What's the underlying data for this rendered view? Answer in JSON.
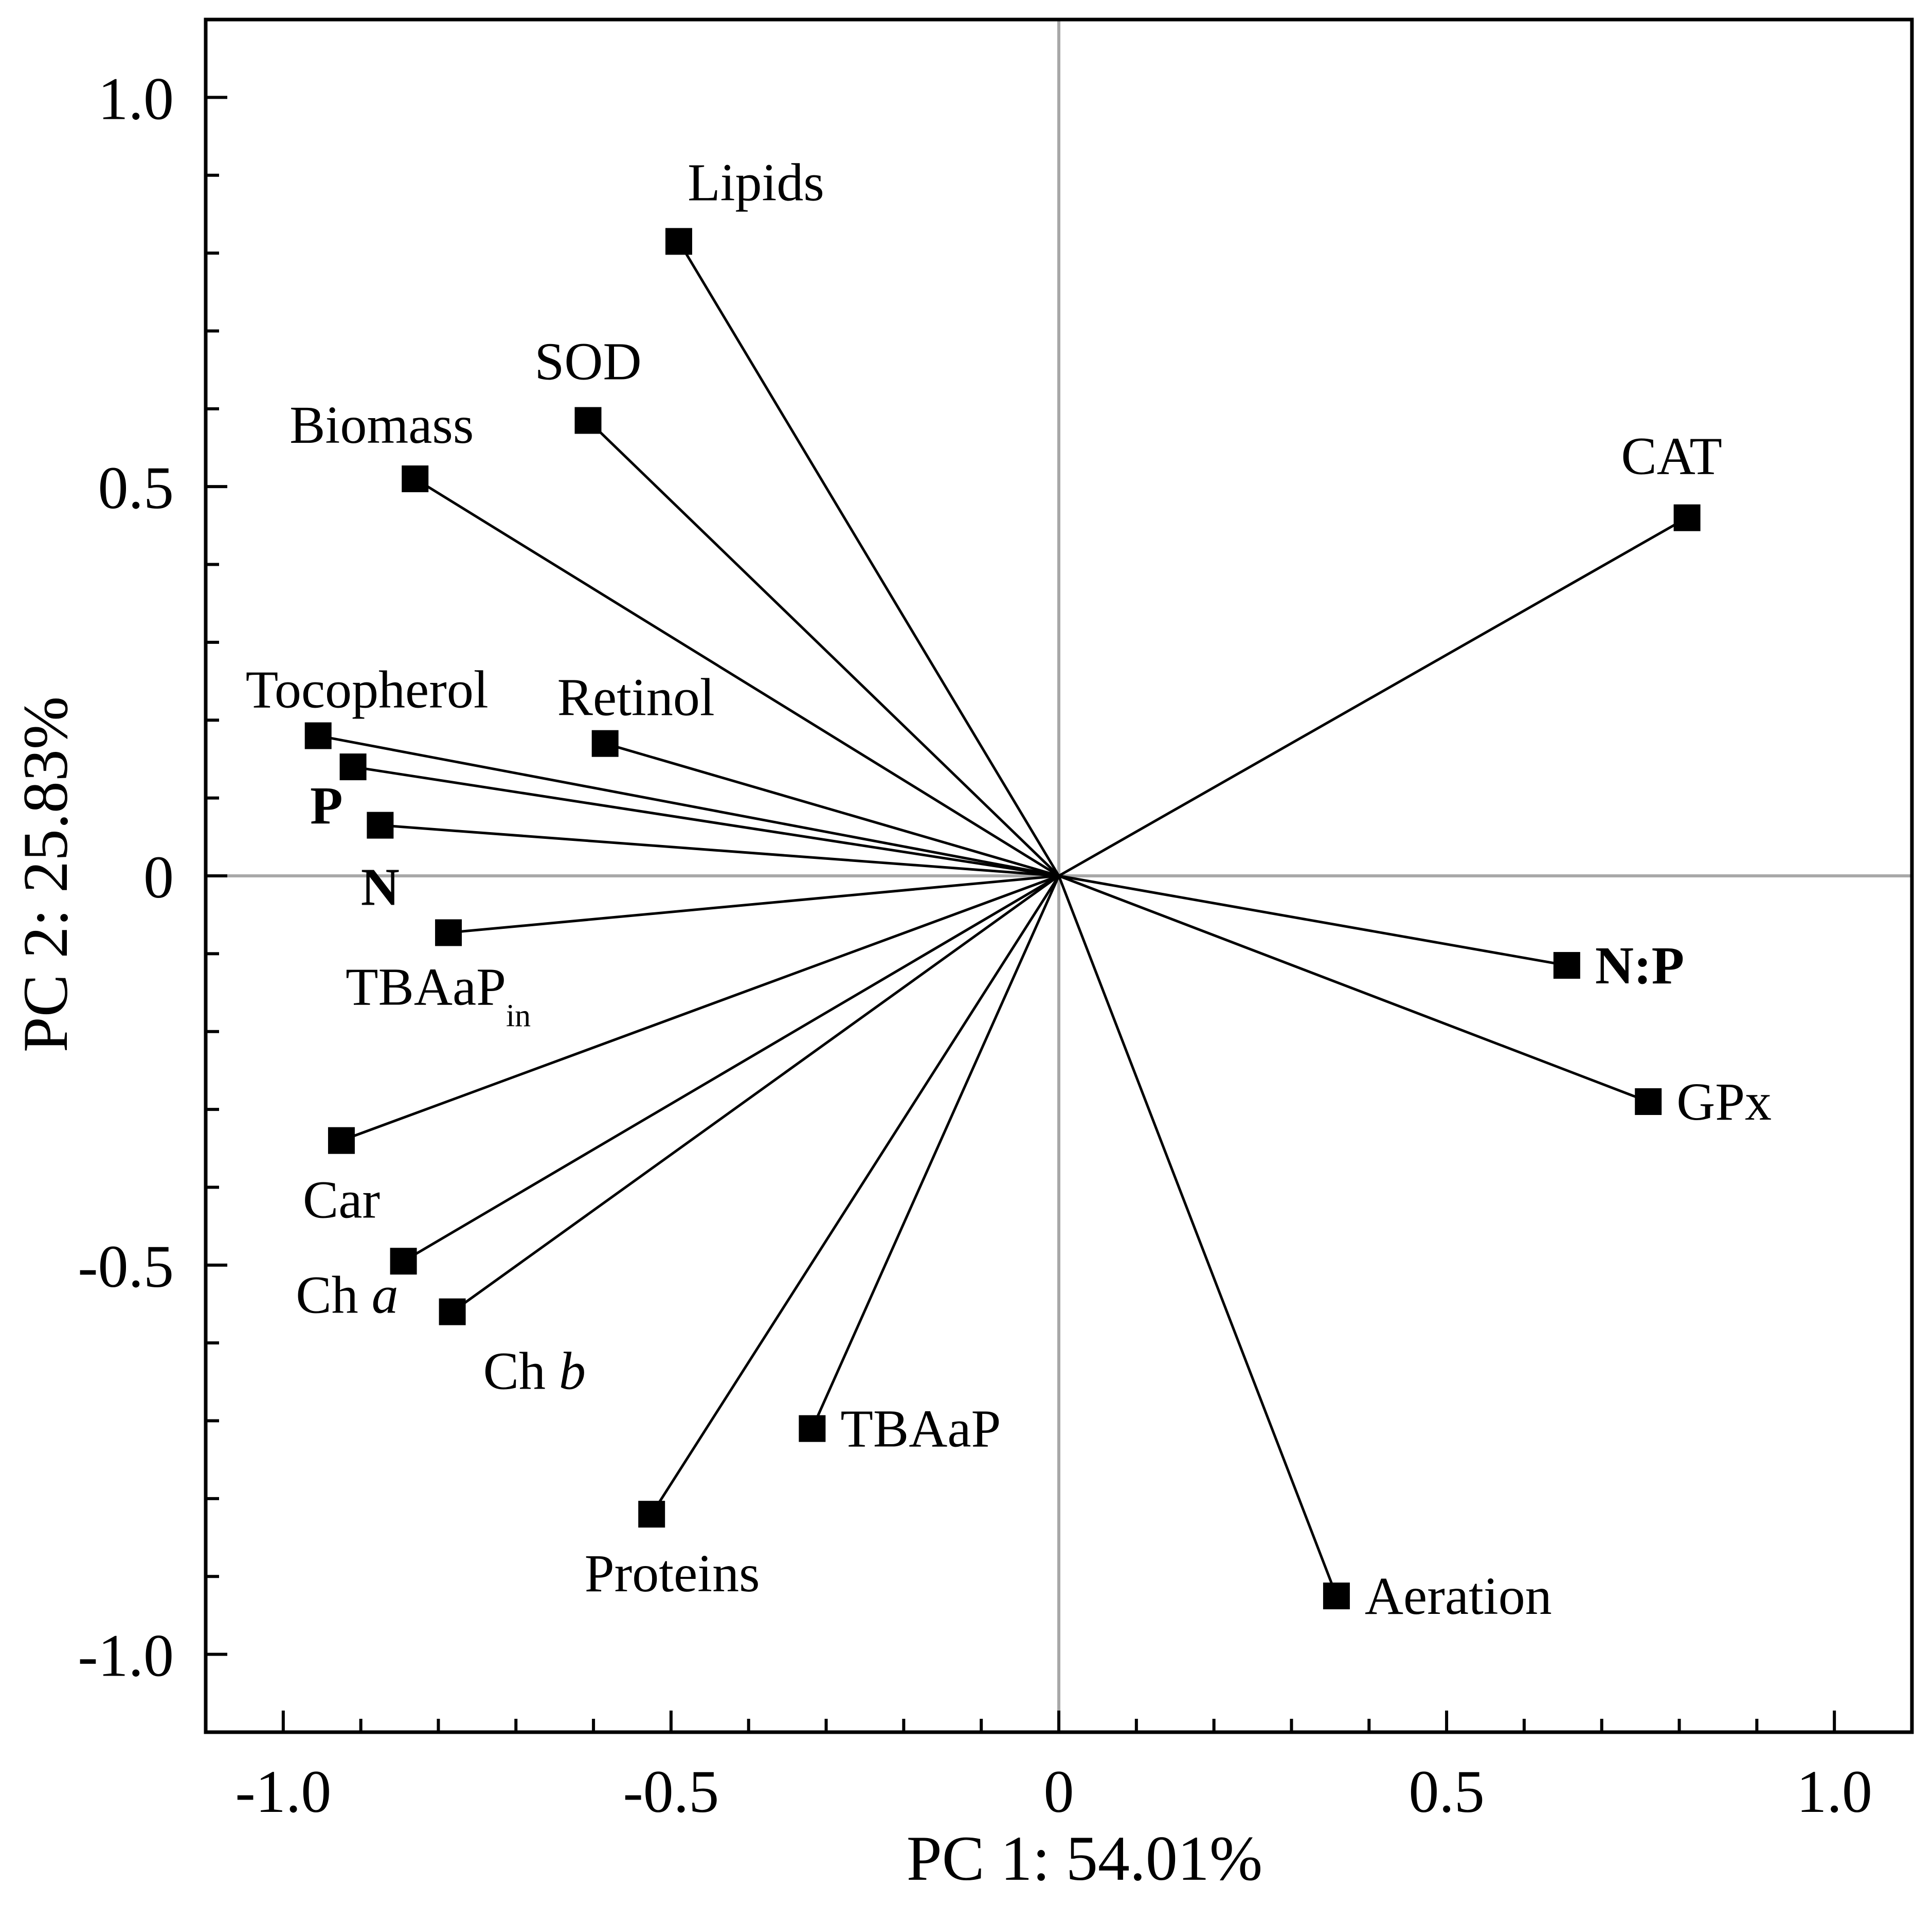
{
  "chart_data": {
    "type": "scatter",
    "subtype": "pca-loadings-biplot",
    "title": "",
    "xlabel": "PC 1: 54.01%",
    "ylabel": "PC 2: 25.83%",
    "xlim": [
      -1.1,
      1.1
    ],
    "ylim": [
      -1.1,
      1.1
    ],
    "x_ticks": [
      {
        "value": -1.0,
        "label": "-1.0"
      },
      {
        "value": -0.5,
        "label": "-0.5"
      },
      {
        "value": 0,
        "label": "0"
      },
      {
        "value": 0.5,
        "label": "0.5"
      },
      {
        "value": 1.0,
        "label": "1.0"
      }
    ],
    "y_ticks": [
      {
        "value": 1.0,
        "label": "1.0"
      },
      {
        "value": 0.5,
        "label": "0.5"
      },
      {
        "value": 0,
        "label": "0"
      },
      {
        "value": -0.5,
        "label": "-0.5"
      },
      {
        "value": -1.0,
        "label": "-1.0"
      }
    ],
    "x_minor_step": 0.1,
    "y_minor_step": 0.1,
    "zero_lines": true,
    "grid": false,
    "vectors": [
      {
        "id": "lipids",
        "label": "Lipids",
        "x": -0.49,
        "y": 0.815,
        "anchor": "above"
      },
      {
        "id": "sod",
        "label": "SOD",
        "x": -0.607,
        "y": 0.585,
        "anchor": "above-left"
      },
      {
        "id": "biomass",
        "label": "Biomass",
        "x": -0.83,
        "y": 0.51,
        "anchor": "above-left"
      },
      {
        "id": "cat",
        "label": "CAT",
        "x": 0.81,
        "y": 0.46,
        "anchor": "above-left"
      },
      {
        "id": "tocopherol",
        "label": "Tocopherol",
        "x": -0.955,
        "y": 0.18,
        "anchor": "above"
      },
      {
        "id": "retinol",
        "label": "Retinol",
        "x": -0.585,
        "y": 0.17,
        "anchor": "above"
      },
      {
        "id": "p",
        "label": "P",
        "x": -0.91,
        "y": 0.14,
        "anchor": "below-left",
        "bold": true
      },
      {
        "id": "n",
        "label": "N",
        "x": -0.875,
        "y": 0.065,
        "anchor": "below",
        "bold": true
      },
      {
        "id": "tbaapin",
        "label": "TBAaP",
        "sub": "in",
        "x": -0.787,
        "y": -0.073,
        "anchor": "below"
      },
      {
        "id": "np",
        "label": "N:P",
        "x": 0.655,
        "y": -0.115,
        "anchor": "right",
        "bold": true
      },
      {
        "id": "gpx",
        "label": "GPx",
        "x": 0.76,
        "y": -0.29,
        "anchor": "right"
      },
      {
        "id": "car",
        "label": "Car",
        "x": -0.925,
        "y": -0.34,
        "anchor": "below"
      },
      {
        "id": "cha",
        "label": "Ch ",
        "italic_part": "a",
        "x": -0.845,
        "y": -0.495,
        "anchor": "below-left"
      },
      {
        "id": "chb",
        "label": "Ch ",
        "italic_part": "b",
        "x": -0.782,
        "y": -0.56,
        "anchor": "below-right"
      },
      {
        "id": "tbaap",
        "label": "TBAaP",
        "x": -0.318,
        "y": -0.71,
        "anchor": "right"
      },
      {
        "id": "proteins",
        "label": "Proteins",
        "x": -0.525,
        "y": -0.82,
        "anchor": "below"
      },
      {
        "id": "aeration",
        "label": "Aeration",
        "x": 0.358,
        "y": -0.925,
        "anchor": "right"
      }
    ]
  },
  "colors": {
    "line": "#000000",
    "marker": "#000000",
    "zero_line": "#a8a8a8",
    "frame": "#000000"
  }
}
